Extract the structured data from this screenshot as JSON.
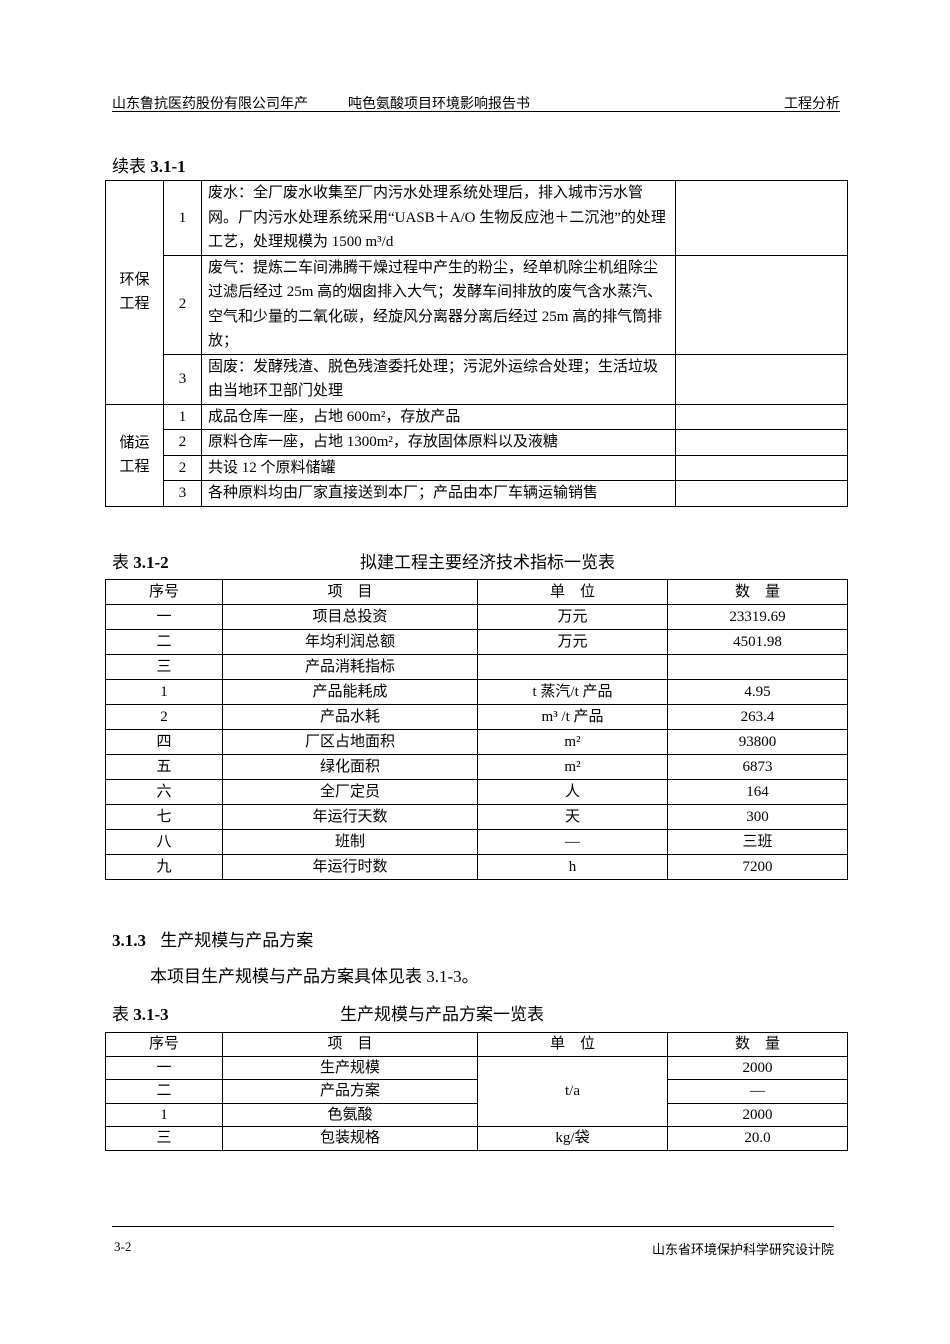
{
  "header": {
    "company": "山东鲁抗医药股份有限公司年产",
    "project": "吨色氨酸项目环境影响报告书",
    "section": "工程分析"
  },
  "table1": {
    "caption_prefix": "续表",
    "caption_num": "3.1-1",
    "groups": [
      {
        "name": "环保工程",
        "rows": [
          {
            "no": "1",
            "desc": "废水：全厂废水收集至厂内污水处理系统处理后，排入城市污水管网。厂内污水处理系统采用“UASB＋A/O 生物反应池＋二沉池”的处理工艺，处理规模为 1500 m³/d",
            "note": ""
          },
          {
            "no": "2",
            "desc": "废气：提炼二车间沸腾干燥过程中产生的粉尘，经单机除尘机组除尘过滤后经过 25m 高的烟囱排入大气；发酵车间排放的废气含水蒸汽、空气和少量的二氧化碳，经旋风分离器分离后经过 25m 高的排气筒排放；",
            "note": ""
          },
          {
            "no": "3",
            "desc": "固废：发酵残渣、脱色残渣委托处理；污泥外运综合处理；生活垃圾由当地环卫部门处理",
            "note": ""
          }
        ]
      },
      {
        "name": "储运工程",
        "rows": [
          {
            "no": "1",
            "desc": "成品仓库一座，占地 600m²，存放产品",
            "note": ""
          },
          {
            "no": "2",
            "desc": "原料仓库一座，占地 1300m²，存放固体原料以及液糖",
            "note": ""
          },
          {
            "no": "2",
            "desc": "共设 12 个原料储罐",
            "note": ""
          },
          {
            "no": "3",
            "desc": "各种原料均由厂家直接送到本厂；产品由本厂车辆运输销售",
            "note": ""
          }
        ]
      }
    ]
  },
  "table2": {
    "caption_prefix": "表",
    "caption_num": "3.1-2",
    "title": "拟建工程主要经济技术指标一览表",
    "headers": [
      "序号",
      "项　目",
      "单　位",
      "数　量"
    ],
    "rows": [
      [
        "一",
        "项目总投资",
        "万元",
        "23319.69"
      ],
      [
        "二",
        "年均利润总额",
        "万元",
        "4501.98"
      ],
      [
        "三",
        "产品消耗指标",
        "",
        ""
      ],
      [
        "1",
        "产品能耗成",
        "t 蒸汽/t 产品",
        "4.95"
      ],
      [
        "2",
        "产品水耗",
        "m³ /t 产品",
        "263.4"
      ],
      [
        "四",
        "厂区占地面积",
        "m²",
        "93800"
      ],
      [
        "五",
        "绿化面积",
        "m²",
        "6873"
      ],
      [
        "六",
        "全厂定员",
        "人",
        "164"
      ],
      [
        "七",
        "年运行天数",
        "天",
        "300"
      ],
      [
        "八",
        "班制",
        "—",
        "三班"
      ],
      [
        "九",
        "年运行时数",
        "h",
        "7200"
      ]
    ]
  },
  "section": {
    "number": "3.1.3",
    "title": "生产规模与产品方案",
    "paragraph": "本项目生产规模与产品方案具体见表 3.1-3。"
  },
  "table3": {
    "caption_prefix": "表",
    "caption_num": "3.1-3",
    "title": "生产规模与产品方案一览表",
    "headers": [
      "序号",
      "项　目",
      "单　位",
      "数　量"
    ],
    "merged_unit": "t/a",
    "rows": [
      [
        "一",
        "生产规模",
        "",
        "2000"
      ],
      [
        "二",
        "产品方案",
        "",
        "—"
      ],
      [
        "1",
        "色氨酸",
        "",
        "2000"
      ],
      [
        "三",
        "包装规格",
        "kg/袋",
        "20.0"
      ]
    ]
  },
  "footer": {
    "page": "3-2",
    "org": "山东省环境保护科学研究设计院"
  }
}
